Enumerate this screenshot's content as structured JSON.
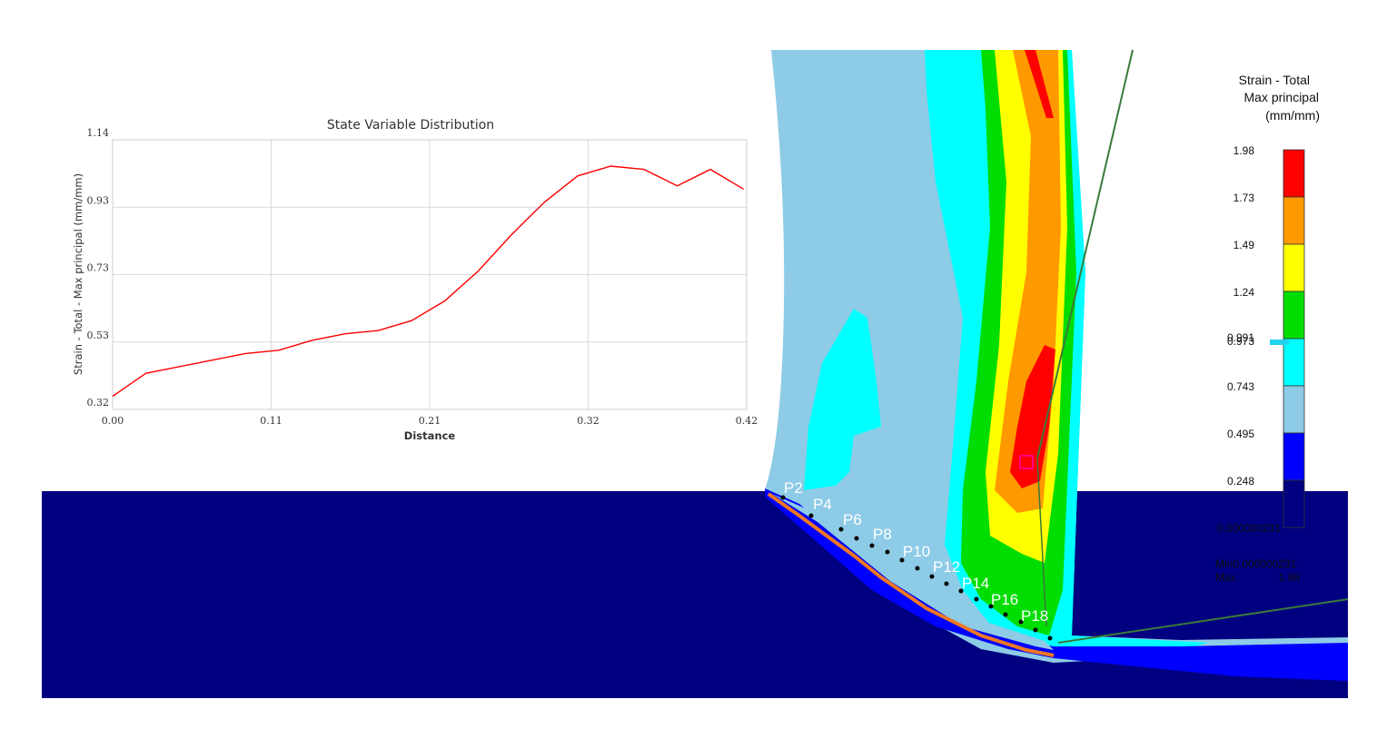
{
  "chart_data": {
    "type": "line",
    "title": "State Variable Distribution",
    "xlabel": "Distance",
    "ylabel": "Strain - Total - Max principal (mm/mm)",
    "xlim": [
      0.0,
      0.42
    ],
    "ylim": [
      0.32,
      1.14
    ],
    "x_ticks": [
      "0.00",
      "0.11",
      "0.21",
      "0.32",
      "0.42"
    ],
    "y_ticks": [
      "0.32",
      "0.53",
      "0.73",
      "0.93",
      "1.14"
    ],
    "grid": true,
    "series": [
      {
        "color": "#ff0000",
        "x": [
          0.0,
          0.022,
          0.044,
          0.066,
          0.088,
          0.11,
          0.132,
          0.154,
          0.176,
          0.198,
          0.22,
          0.242,
          0.264,
          0.286,
          0.308,
          0.33,
          0.352,
          0.374,
          0.396,
          0.418
        ],
        "y": [
          0.36,
          0.43,
          0.45,
          0.47,
          0.49,
          0.5,
          0.53,
          0.55,
          0.56,
          0.59,
          0.65,
          0.74,
          0.85,
          0.95,
          1.03,
          1.06,
          1.05,
          1.0,
          1.05,
          0.99
        ]
      }
    ]
  },
  "legend": {
    "title_lines": [
      "Strain - Total",
      "Max principal",
      "(mm/mm)"
    ],
    "levels": [
      "1.98",
      "1.73",
      "1.49",
      "1.24",
      "0.991",
      "0.743",
      "0.495",
      "0.248",
      "0.000000231"
    ],
    "marker_values": [
      "0.991",
      "0.973"
    ],
    "colors": [
      "#ff0000",
      "#ff9900",
      "#ffff00",
      "#00dd00",
      "#00ffff",
      "#8ecbe6",
      "#0000ff",
      "#000080"
    ],
    "marker_color": "#22d3ee",
    "min_label": "Min0.000000231",
    "max_label": "Max",
    "max_value": "1.98"
  },
  "point_labels": [
    "P2",
    "P4",
    "P6",
    "P8",
    "P10",
    "P12",
    "P14",
    "P16",
    "P18"
  ]
}
